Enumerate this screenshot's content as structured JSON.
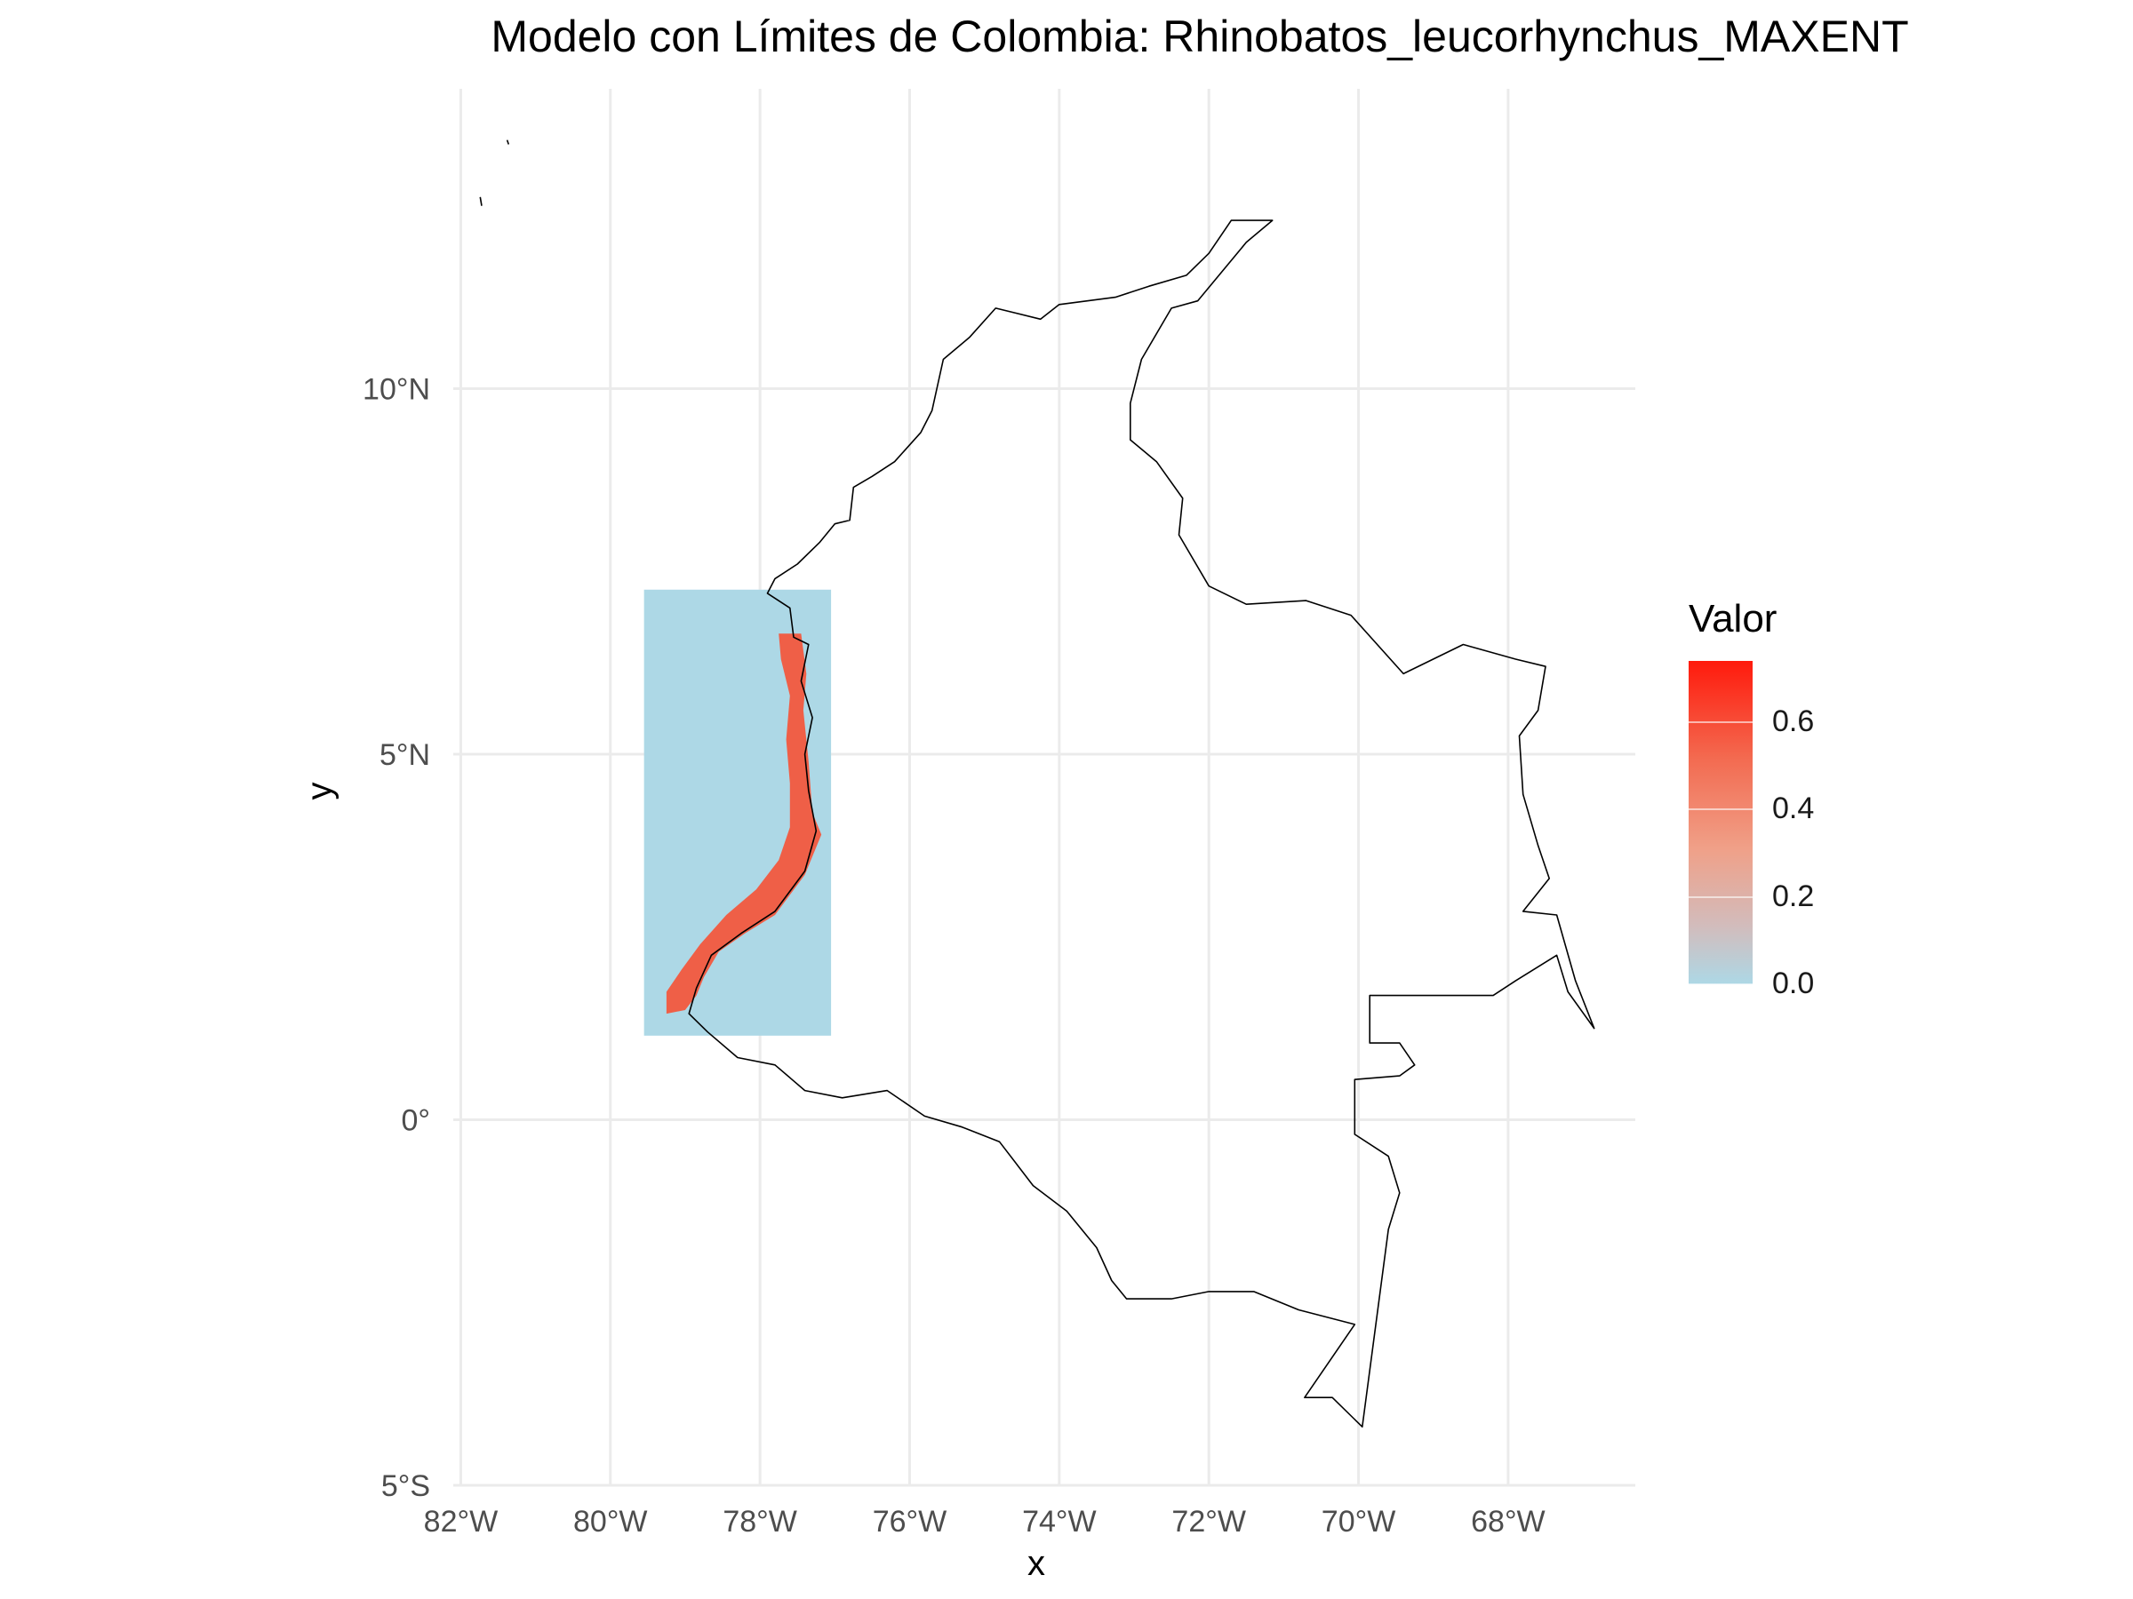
{
  "title": "Modelo con Límites de Colombia: Rhinobatos_leucorhynchus_MAXENT",
  "axes": {
    "xlabel": "x",
    "ylabel": "y",
    "x_ticks": [
      {
        "value": -82,
        "label": "82°W"
      },
      {
        "value": -80,
        "label": "80°W"
      },
      {
        "value": -78,
        "label": "78°W"
      },
      {
        "value": -76,
        "label": "76°W"
      },
      {
        "value": -74,
        "label": "74°W"
      },
      {
        "value": -72,
        "label": "72°W"
      },
      {
        "value": -70,
        "label": "70°W"
      },
      {
        "value": -68,
        "label": "68°W"
      }
    ],
    "y_ticks": [
      {
        "value": 10,
        "label": "10°N"
      },
      {
        "value": 5,
        "label": "5°N"
      },
      {
        "value": 0,
        "label": "0°"
      },
      {
        "value": -5,
        "label": "5°S"
      }
    ],
    "xlim": [
      -82.1,
      -66.3
    ],
    "ylim": [
      -5.0,
      14.1
    ],
    "grid": true
  },
  "legend": {
    "title": "Valor",
    "ticks": [
      {
        "value": 0.0,
        "label": "0.0"
      },
      {
        "value": 0.2,
        "label": "0.2"
      },
      {
        "value": 0.4,
        "label": "0.4"
      },
      {
        "value": 0.6,
        "label": "0.6"
      }
    ],
    "min": 0.0,
    "max": 0.74,
    "low_color": "#add8e6",
    "high_color": "#ff1a0c"
  },
  "raster": {
    "extent_lon": [
      -79.55,
      -77.05
    ],
    "extent_lat": [
      1.15,
      7.25
    ],
    "background_value": 0.0,
    "background_color": "#add8e6",
    "suitability_color": "#f4553a"
  },
  "colors": {
    "grid": "#ebebeb",
    "outline": "#000000",
    "text": "#4d4d4d"
  }
}
